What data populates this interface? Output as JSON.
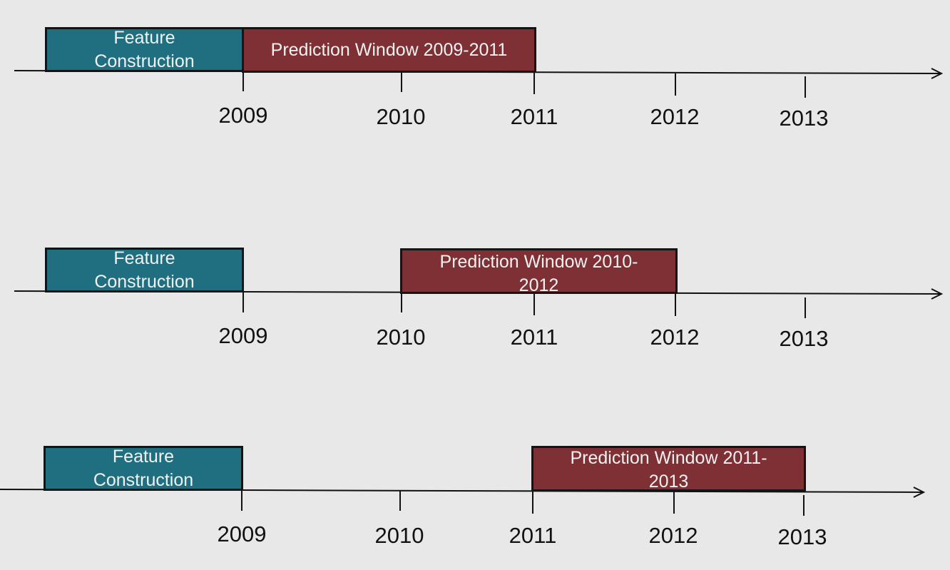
{
  "timelines": [
    {
      "feature_label": "Feature\nConstruction",
      "prediction_label": "Prediction Window 2009-2011",
      "years": [
        "2009",
        "2010",
        "2011",
        "2012",
        "2013"
      ]
    },
    {
      "feature_label": "Feature\nConstruction",
      "prediction_label": "Prediction Window 2010-\n2012",
      "years": [
        "2009",
        "2010",
        "2011",
        "2012",
        "2013"
      ]
    },
    {
      "feature_label": "Feature\nConstruction",
      "prediction_label": "Prediction Window 2011-\n2013",
      "years": [
        "2009",
        "2010",
        "2011",
        "2012",
        "2013"
      ]
    }
  ],
  "colors": {
    "feature_box": "#1f6f81",
    "prediction_box": "#7e3034",
    "axis": "#111111",
    "background": "#e8e8e8"
  }
}
